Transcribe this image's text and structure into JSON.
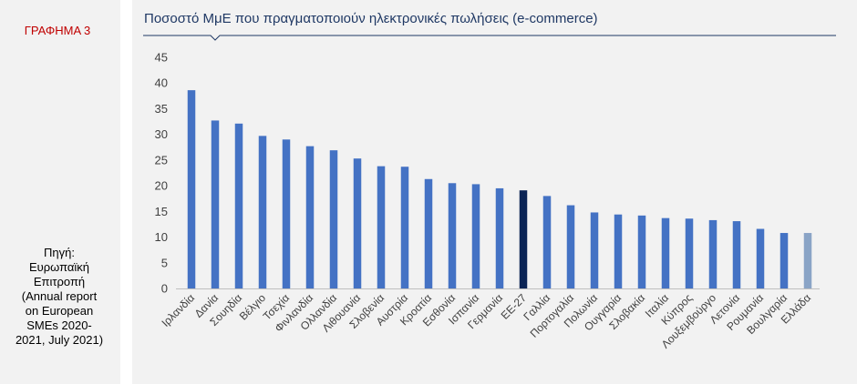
{
  "sidebar": {
    "graph_label": "ΓΡΑΦΗΜΑ 3",
    "source_lines": [
      "Πηγή:",
      "Ευρωπαϊκή",
      "Επιτροπή",
      "(Annual report",
      "on European",
      "SMEs 2020-",
      "2021, July 2021)"
    ]
  },
  "chart_data": {
    "type": "bar",
    "title": "Ποσοστό ΜμΕ που πραγματοποιούν ηλεκτρονικές πωλήσεις (e-commerce)",
    "xlabel": "",
    "ylabel": "",
    "ylim": [
      0,
      45
    ],
    "yticks": [
      0,
      5,
      10,
      15,
      20,
      25,
      30,
      35,
      40,
      45
    ],
    "grid": false,
    "categories": [
      "Ιρλανδία",
      "Δανία",
      "Σουηδία",
      "Βέλγιο",
      "Τσεχία",
      "Φινλανδία",
      "Ολλανδία",
      "Λιθουανία",
      "Σλοβενία",
      "Αυστρία",
      "Κροατία",
      "Εσθονία",
      "Ισπανία",
      "Γερμανία",
      "ΕΕ-27",
      "Γαλλία",
      "Πορτογαλία",
      "Πολωνία",
      "Ουγγαρία",
      "Σλοβακία",
      "Ιταλία",
      "Κύπρος",
      "Λουξεμβούργο",
      "Λετονία",
      "Ρουμανία",
      "Βουλγαρία",
      "Ελλάδα"
    ],
    "values": [
      38.6,
      32.7,
      32.1,
      29.7,
      29.0,
      27.7,
      26.9,
      25.3,
      23.8,
      23.7,
      21.3,
      20.5,
      20.3,
      19.5,
      19.1,
      18.0,
      16.2,
      14.8,
      14.4,
      14.2,
      13.7,
      13.6,
      13.3,
      13.1,
      11.6,
      10.8,
      10.8
    ],
    "colors": {
      "default": "#4472c4",
      "highlight_eu": "#0b2455",
      "highlight_greece": "#8aa4c6",
      "title": "#1f3864",
      "graph_label": "#c00000"
    }
  }
}
